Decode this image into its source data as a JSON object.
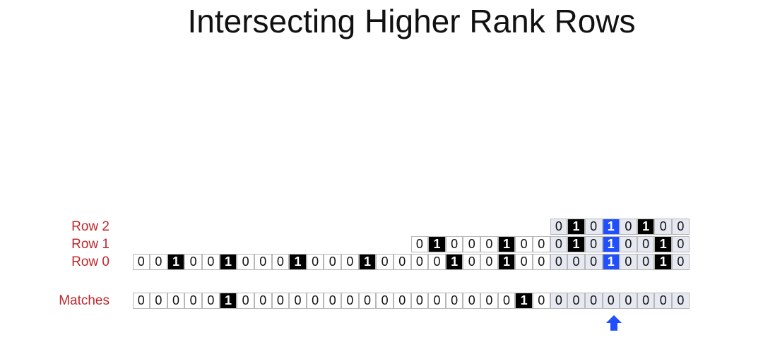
{
  "title": "Intersecting Higher Rank Rows",
  "rows": [
    {
      "label": "Row 2",
      "start": 24,
      "bits": "01010100"
    },
    {
      "label": "Row 1",
      "start": 16,
      "bits": "0100010001010010"
    },
    {
      "label": "Row 0",
      "start": 0,
      "bits": "00100100010001000010010000010010"
    }
  ],
  "matches": {
    "label": "Matches",
    "start": 0,
    "bits": "00000100000000000000001000000000"
  },
  "highlight_column": 27,
  "tinted_from_column": 24,
  "colors": {
    "one": "#000000",
    "highlight": "#1f4fff",
    "label": "#c0282d",
    "tint": "#e6e9f2"
  },
  "arrow_icon": "up-arrow-icon"
}
